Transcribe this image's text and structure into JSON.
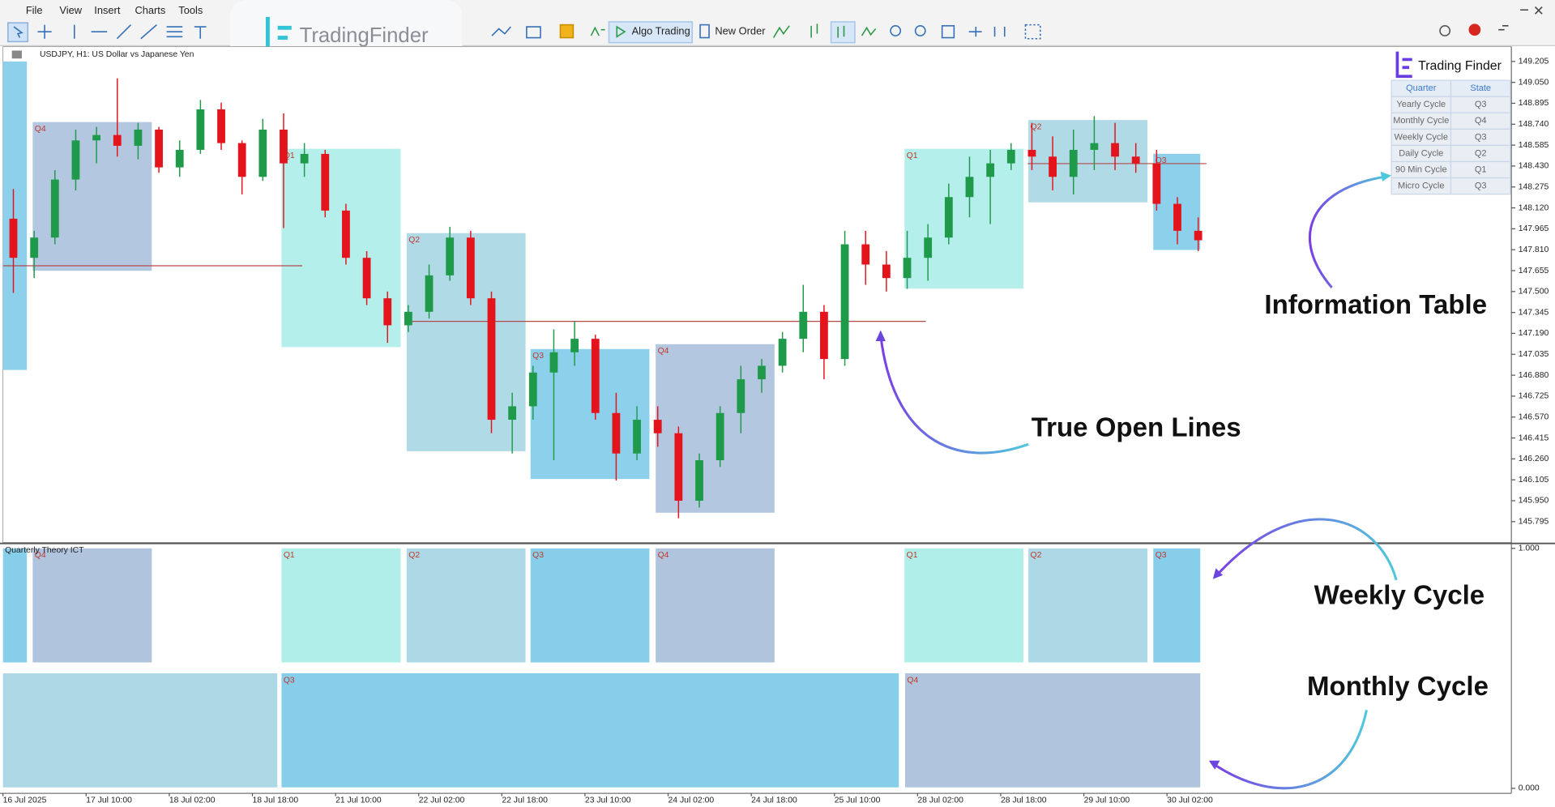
{
  "menu": [
    "File",
    "View",
    "Insert",
    "Charts",
    "Tools"
  ],
  "toolbar": {
    "algo_trading": "Algo Trading",
    "new_order": "New Order"
  },
  "watermark": "TradingFinder",
  "chart_data": {
    "type": "candlestick",
    "title": "USDJPY, H1:  US Dollar vs Japanese Yen",
    "categories": [
      "16 Jul 2025",
      null,
      null,
      null,
      "17 Jul 10:00",
      null,
      null,
      null,
      "18 Jul 02:00",
      null,
      null,
      null,
      "18 Jul 18:00",
      null,
      null,
      null,
      "21 Jul 10:00",
      null,
      null,
      null,
      "22 Jul 02:00",
      null,
      null,
      null,
      "22 Jul 18:00",
      null,
      null,
      null,
      "23 Jul 10:00",
      null,
      null,
      null,
      "24 Jul 02:00",
      null,
      null,
      null,
      "24 Jul 18:00",
      null,
      null,
      null,
      "25 Jul 10:00",
      null,
      null,
      null,
      "28 Jul 02:00",
      null,
      null,
      null,
      "28 Jul 18:00",
      null,
      null,
      null,
      "29 Jul 10:00",
      null,
      null,
      null,
      "30 Jul 02:00",
      null
    ],
    "open": [
      148.04,
      147.75,
      147.9,
      148.33,
      148.62,
      148.66,
      148.58,
      148.7,
      148.42,
      148.55,
      148.85,
      148.6,
      148.35,
      148.7,
      148.45,
      148.52,
      148.1,
      147.75,
      147.45,
      147.25,
      147.35,
      147.62,
      147.9,
      147.45,
      146.55,
      146.65,
      146.9,
      147.05,
      147.15,
      146.6,
      146.3,
      146.55,
      146.45,
      145.95,
      146.25,
      146.6,
      146.85,
      146.95,
      147.15,
      147.35,
      147.0,
      147.85,
      147.7,
      147.6,
      147.75,
      147.9,
      148.2,
      148.35,
      148.45,
      148.55,
      148.5,
      148.35,
      148.55,
      148.6,
      148.5,
      148.45,
      148.15,
      147.95
    ],
    "high": [
      148.26,
      147.95,
      148.4,
      148.7,
      148.72,
      149.08,
      148.75,
      148.72,
      148.62,
      148.92,
      148.9,
      148.62,
      148.78,
      148.82,
      148.6,
      148.55,
      148.15,
      147.8,
      147.5,
      147.4,
      147.7,
      147.98,
      147.95,
      147.5,
      146.75,
      146.95,
      147.22,
      147.28,
      147.18,
      146.75,
      146.65,
      146.65,
      146.5,
      146.3,
      146.65,
      146.95,
      147.0,
      147.2,
      147.55,
      147.4,
      147.95,
      147.95,
      147.8,
      147.95,
      148.0,
      148.3,
      148.5,
      148.55,
      148.6,
      148.75,
      148.65,
      148.7,
      148.8,
      148.75,
      148.6,
      148.55,
      148.2,
      148.05
    ],
    "low": [
      147.49,
      147.6,
      147.85,
      148.25,
      148.45,
      148.5,
      148.48,
      148.38,
      148.35,
      148.52,
      148.55,
      148.22,
      148.32,
      147.97,
      148.35,
      148.05,
      147.7,
      147.4,
      147.12,
      147.2,
      147.3,
      147.58,
      147.4,
      146.45,
      146.3,
      146.55,
      146.25,
      146.95,
      146.55,
      146.1,
      146.25,
      146.35,
      145.82,
      145.9,
      146.2,
      146.45,
      146.75,
      146.9,
      147.05,
      146.85,
      146.95,
      147.55,
      147.5,
      147.52,
      147.58,
      147.85,
      148.05,
      148.0,
      148.4,
      148.4,
      148.25,
      148.22,
      148.4,
      148.4,
      148.38,
      148.1,
      147.85,
      147.8
    ],
    "close": [
      147.75,
      147.9,
      148.33,
      148.62,
      148.66,
      148.58,
      148.7,
      148.42,
      148.55,
      148.85,
      148.6,
      148.35,
      148.7,
      148.45,
      148.52,
      148.1,
      147.75,
      147.45,
      147.25,
      147.35,
      147.62,
      147.9,
      147.45,
      146.55,
      146.65,
      146.9,
      147.05,
      147.15,
      146.6,
      146.3,
      146.55,
      146.45,
      145.95,
      146.25,
      146.6,
      146.85,
      146.95,
      147.15,
      147.35,
      147.0,
      147.85,
      147.7,
      147.6,
      147.75,
      147.9,
      148.2,
      148.35,
      148.45,
      148.55,
      148.5,
      148.35,
      148.55,
      148.6,
      148.5,
      148.45,
      148.15,
      147.95,
      147.88
    ],
    "up_color": "#1e9a4a",
    "down_color": "#e3141c",
    "ylim": [
      145.641,
      149.315
    ],
    "yticks": [
      149.205,
      {
        "value": 149.05,
        "label": "149.050"
      },
      148.895,
      {
        "value": 148.74,
        "label": "148.740"
      },
      148.585,
      {
        "value": 148.43,
        "label": "148.430"
      },
      148.275,
      {
        "value": 148.12,
        "label": "148.120"
      },
      147.965,
      {
        "value": 147.81,
        "label": "147.810"
      },
      147.655,
      {
        "value": 147.5,
        "label": "147.500"
      },
      147.345,
      {
        "value": 147.19,
        "label": "147.190"
      },
      147.035,
      {
        "value": 146.88,
        "label": "146.880"
      },
      146.725,
      {
        "value": 146.57,
        "label": "146.570"
      },
      146.415,
      {
        "value": 146.26,
        "label": "146.260"
      },
      146.105,
      {
        "value": 145.95,
        "label": "145.950"
      },
      145.795
    ],
    "true_open_lines": [
      {
        "value": 147.691,
        "start": 0,
        "end": 14.4
      },
      {
        "value": 147.279,
        "start": 19.4,
        "end": 44.4
      },
      {
        "value": 148.448,
        "start": 49.3,
        "end": 57.9
      }
    ],
    "line_color": "#b34a4a",
    "quarter_boxes": [
      {
        "start": 0,
        "end": 1.15,
        "top": 149.205,
        "bottom": 146.919,
        "color": "#87ceeb"
      },
      {
        "label": "Q4",
        "start": 1.43,
        "end": 7.16,
        "top": 148.756,
        "bottom": 147.654,
        "color": "#b0c4de"
      },
      {
        "label": "Q1",
        "start": 13.4,
        "end": 19.13,
        "top": 148.558,
        "bottom": 147.088,
        "color": "#b0eeea"
      },
      {
        "label": "Q2",
        "start": 19.42,
        "end": 25.14,
        "top": 147.933,
        "bottom": 146.317,
        "color": "#add8e6"
      },
      {
        "label": "Q3",
        "start": 25.38,
        "end": 31.1,
        "top": 147.074,
        "bottom": 146.111,
        "color": "#87ceeb"
      },
      {
        "label": "Q4",
        "start": 31.4,
        "end": 37.12,
        "top": 147.11,
        "bottom": 145.861,
        "color": "#b0c4de"
      },
      {
        "label": "Q1",
        "start": 43.37,
        "end": 49.09,
        "top": 148.558,
        "bottom": 147.522,
        "color": "#b0eeea"
      },
      {
        "label": "Q2",
        "start": 49.33,
        "end": 55.06,
        "top": 148.771,
        "bottom": 148.161,
        "color": "#add8e6"
      },
      {
        "label": "Q3",
        "start": 55.34,
        "end": 57.6,
        "top": 148.521,
        "bottom": 147.808,
        "color": "#87ceeb"
      }
    ]
  },
  "indicator": {
    "title": "Quarterly Theory ICT",
    "ylim": [
      -0.0165,
      1.0165
    ],
    "yticks": [
      {
        "value": 1,
        "label": "1.000"
      },
      {
        "value": 0,
        "label": "0.000"
      }
    ],
    "monthly_boxes": [
      {
        "start": 0,
        "end": 13.2,
        "color": "#add8e6"
      },
      {
        "label": "Q3",
        "start": 13.4,
        "end": 43.1,
        "color": "#87ceeb"
      },
      {
        "label": "Q4",
        "start": 43.4,
        "end": 57.6,
        "color": "#b0c4de"
      }
    ]
  },
  "info_table": {
    "logo": "Trading Finder",
    "header": [
      "Quarter",
      "State"
    ],
    "rows": [
      [
        "Yearly Cycle",
        "Q3"
      ],
      [
        "Monthly Cycle",
        "Q4"
      ],
      [
        "Weekly Cycle",
        "Q3"
      ],
      [
        "Daily Cycle",
        "Q2"
      ],
      [
        "90 Min Cycle",
        "Q1"
      ],
      [
        "Micro Cycle",
        "Q3"
      ]
    ]
  },
  "annotations": {
    "info": "Information Table",
    "true_open": "True Open Lines",
    "weekly": "Weekly Cycle",
    "monthly": "Monthly Cycle"
  }
}
